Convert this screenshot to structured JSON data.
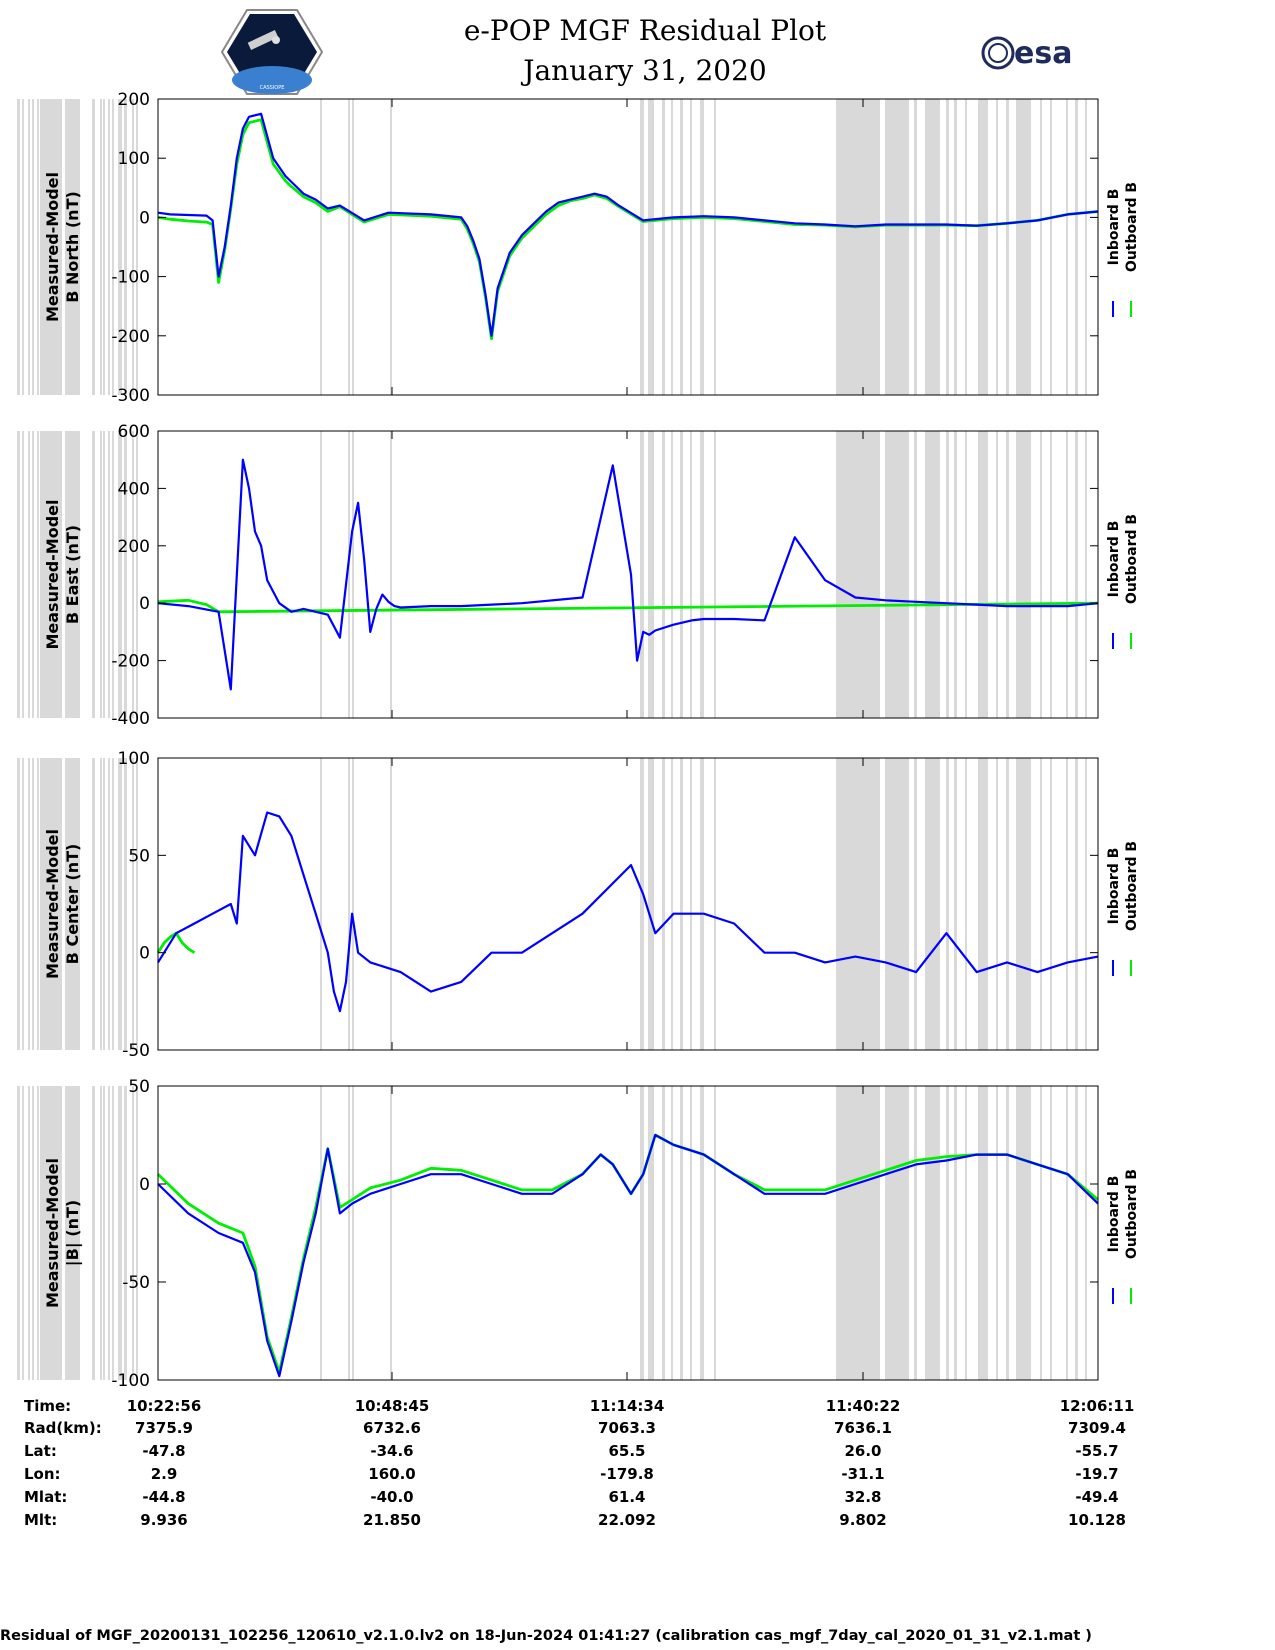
{
  "header": {
    "title_line1": "e-POP MGF Residual Plot",
    "title_line2": "January 31, 2020",
    "logo_left": "CASSIOPE",
    "logo_right": "esa"
  },
  "colors": {
    "inboard": "#0000ff",
    "outboard": "#00ee00",
    "shade": "#d9d9d9"
  },
  "chart_data": [
    {
      "type": "line",
      "ylabel_line1": "Measured-Model",
      "ylabel_line2": "B North (nT)",
      "ylim": [
        -300,
        200
      ],
      "yticks": [
        200,
        100,
        0,
        -100,
        -200,
        -300
      ],
      "series": [
        {
          "name": "Inboard B",
          "x": [
            0,
            2,
            5,
            8,
            9,
            10,
            11,
            12,
            13,
            14,
            15,
            17,
            19,
            21,
            22,
            24,
            26,
            28,
            30,
            34,
            38,
            45,
            50,
            51,
            52,
            53,
            54,
            55,
            56,
            58,
            60,
            62,
            64,
            66,
            68,
            70,
            72,
            74,
            76,
            80,
            85,
            90,
            95,
            100,
            105,
            110,
            115,
            120,
            125,
            130,
            135,
            140,
            145,
            150,
            155
          ],
          "y": [
            8,
            5,
            4,
            3,
            -5,
            -100,
            -50,
            20,
            100,
            150,
            170,
            175,
            100,
            70,
            60,
            40,
            30,
            15,
            20,
            -5,
            8,
            5,
            0,
            -15,
            -40,
            -70,
            -130,
            -200,
            -120,
            -60,
            -30,
            -10,
            10,
            25,
            30,
            35,
            40,
            35,
            20,
            -5,
            0,
            2,
            0,
            -5,
            -10,
            -12,
            -15,
            -12,
            -12,
            -12,
            -14,
            -10,
            -5,
            5,
            10
          ]
        },
        {
          "name": "Outboard B",
          "x": [
            0,
            2,
            5,
            8,
            9,
            10,
            11,
            12,
            13,
            14,
            15,
            17,
            19,
            21,
            22,
            24,
            26,
            28,
            30,
            34,
            38,
            45,
            50,
            51,
            52,
            53,
            54,
            55,
            56,
            58,
            60,
            62,
            64,
            66,
            68,
            70,
            72,
            74,
            76,
            80,
            85,
            90,
            95,
            100,
            105,
            110,
            115,
            120,
            125,
            130,
            135,
            140,
            145,
            150,
            155
          ],
          "y": [
            0,
            -3,
            -6,
            -8,
            -12,
            -110,
            -55,
            15,
            90,
            140,
            160,
            165,
            90,
            62,
            52,
            35,
            25,
            10,
            18,
            -8,
            5,
            2,
            -3,
            -20,
            -45,
            -75,
            -135,
            -205,
            -125,
            -65,
            -35,
            -15,
            5,
            20,
            28,
            32,
            38,
            32,
            18,
            -7,
            -2,
            0,
            -2,
            -7,
            -12,
            -13,
            -16,
            -13,
            -13,
            -13,
            -14,
            -10,
            -5,
            5,
            10
          ]
        }
      ]
    },
    {
      "type": "line",
      "ylabel_line1": "Measured-Model",
      "ylabel_line2": "B East (nT)",
      "ylim": [
        -400,
        600
      ],
      "yticks": [
        600,
        400,
        200,
        0,
        -200,
        -400
      ],
      "series": [
        {
          "name": "Inboard B",
          "x": [
            0,
            5,
            10,
            12,
            14,
            15,
            16,
            17,
            18,
            20,
            22,
            24,
            26,
            28,
            30,
            32,
            33,
            34,
            35,
            36,
            37,
            38,
            39,
            40,
            45,
            50,
            55,
            60,
            70,
            75,
            78,
            79,
            80,
            81,
            82,
            85,
            88,
            90,
            95,
            100,
            105,
            110,
            115,
            120,
            125,
            130,
            140,
            150,
            155
          ],
          "y": [
            0,
            -10,
            -30,
            -300,
            500,
            400,
            250,
            200,
            80,
            0,
            -30,
            -20,
            -30,
            -40,
            -120,
            250,
            350,
            150,
            -100,
            -20,
            30,
            5,
            -10,
            -15,
            -10,
            -10,
            -5,
            0,
            20,
            480,
            100,
            -200,
            -100,
            -110,
            -95,
            -75,
            -60,
            -55,
            -55,
            -60,
            230,
            80,
            20,
            10,
            5,
            0,
            -10,
            -10,
            0
          ]
        },
        {
          "name": "Outboard B",
          "x": [
            0,
            5,
            8,
            10,
            155
          ],
          "y": [
            5,
            10,
            -5,
            -30,
            0
          ]
        }
      ]
    },
    {
      "type": "line",
      "ylabel_line1": "Measured-Model",
      "ylabel_line2": "B Center (nT)",
      "ylim": [
        -50,
        100
      ],
      "yticks": [
        100,
        50,
        0,
        -50
      ],
      "series": [
        {
          "name": "Inboard B",
          "x": [
            0,
            3,
            6,
            9,
            12,
            13,
            14,
            16,
            18,
            20,
            22,
            24,
            26,
            28,
            29,
            30,
            31,
            32,
            33,
            35,
            40,
            45,
            50,
            55,
            60,
            70,
            78,
            80,
            82,
            85,
            90,
            95,
            100,
            105,
            110,
            115,
            120,
            125,
            130,
            135,
            140,
            145,
            150,
            155
          ],
          "y": [
            -5,
            10,
            15,
            20,
            25,
            15,
            60,
            50,
            72,
            70,
            60,
            40,
            20,
            0,
            -20,
            -30,
            -15,
            20,
            0,
            -5,
            -10,
            -20,
            -15,
            0,
            0,
            20,
            45,
            30,
            10,
            20,
            20,
            15,
            0,
            0,
            -5,
            -2,
            -5,
            -10,
            10,
            -10,
            -5,
            -10,
            -5,
            -2
          ]
        },
        {
          "name": "Outboard B",
          "x": [
            0,
            1,
            2,
            3,
            4,
            5,
            6
          ],
          "y": [
            0,
            5,
            8,
            10,
            5,
            2,
            0
          ]
        }
      ]
    },
    {
      "type": "line",
      "ylabel_line1": "Measured-Model",
      "ylabel_line2": "|B| (nT)",
      "ylim": [
        -100,
        50
      ],
      "yticks": [
        50,
        0,
        -50,
        -100
      ],
      "series": [
        {
          "name": "Inboard B",
          "x": [
            0,
            5,
            10,
            14,
            16,
            18,
            20,
            22,
            24,
            26,
            28,
            30,
            32,
            35,
            40,
            45,
            50,
            55,
            60,
            65,
            70,
            73,
            75,
            78,
            80,
            82,
            85,
            90,
            95,
            100,
            105,
            110,
            115,
            120,
            125,
            130,
            135,
            140,
            145,
            150,
            155
          ],
          "y": [
            0,
            -15,
            -25,
            -30,
            -45,
            -80,
            -98,
            -70,
            -40,
            -15,
            18,
            -15,
            -10,
            -5,
            0,
            5,
            5,
            0,
            -5,
            -5,
            5,
            15,
            10,
            -5,
            5,
            25,
            20,
            15,
            5,
            -5,
            -5,
            -5,
            0,
            5,
            10,
            12,
            15,
            15,
            10,
            5,
            -10
          ]
        },
        {
          "name": "Outboard B",
          "x": [
            0,
            5,
            10,
            14,
            16,
            18,
            20,
            22,
            24,
            26,
            28,
            30,
            32,
            35,
            40,
            45,
            50,
            55,
            60,
            65,
            70,
            73,
            75,
            78,
            80,
            82,
            85,
            90,
            95,
            100,
            105,
            110,
            115,
            120,
            125,
            130,
            135,
            140,
            145,
            150,
            155
          ],
          "y": [
            5,
            -10,
            -20,
            -25,
            -42,
            -78,
            -96,
            -68,
            -38,
            -12,
            18,
            -12,
            -8,
            -2,
            2,
            8,
            7,
            2,
            -3,
            -3,
            5,
            15,
            10,
            -5,
            5,
            25,
            20,
            15,
            5,
            -3,
            -3,
            -3,
            2,
            7,
            12,
            14,
            15,
            15,
            10,
            5,
            -8
          ]
        }
      ]
    }
  ],
  "legend": {
    "inboard": "Inboard B",
    "outboard": "Outboard B"
  },
  "orbit_table": {
    "row_labels": [
      "Time:",
      "Rad(km):",
      "Lat:",
      "Lon:",
      "Mlat:",
      "Mlt:"
    ],
    "columns": [
      [
        "10:22:56",
        "7375.9",
        "-47.8",
        "2.9",
        "-44.8",
        "9.936"
      ],
      [
        "10:48:45",
        "6732.6",
        "-34.6",
        "160.0",
        "-40.0",
        "21.850"
      ],
      [
        "11:14:34",
        "7063.3",
        "65.5",
        "-179.8",
        "61.4",
        "22.092"
      ],
      [
        "11:40:22",
        "7636.1",
        "26.0",
        "-31.1",
        "32.8",
        "9.802"
      ],
      [
        "12:06:11",
        "7309.4",
        "-55.7",
        "-19.7",
        "-49.4",
        "10.128"
      ]
    ]
  },
  "footer": "Residual of MGF_20200131_102256_120610_v2.1.0.lv2 on 18-Jun-2024 01:41:27 (calibration cas_mgf_7day_cal_2020_01_31_v2.1.mat )"
}
